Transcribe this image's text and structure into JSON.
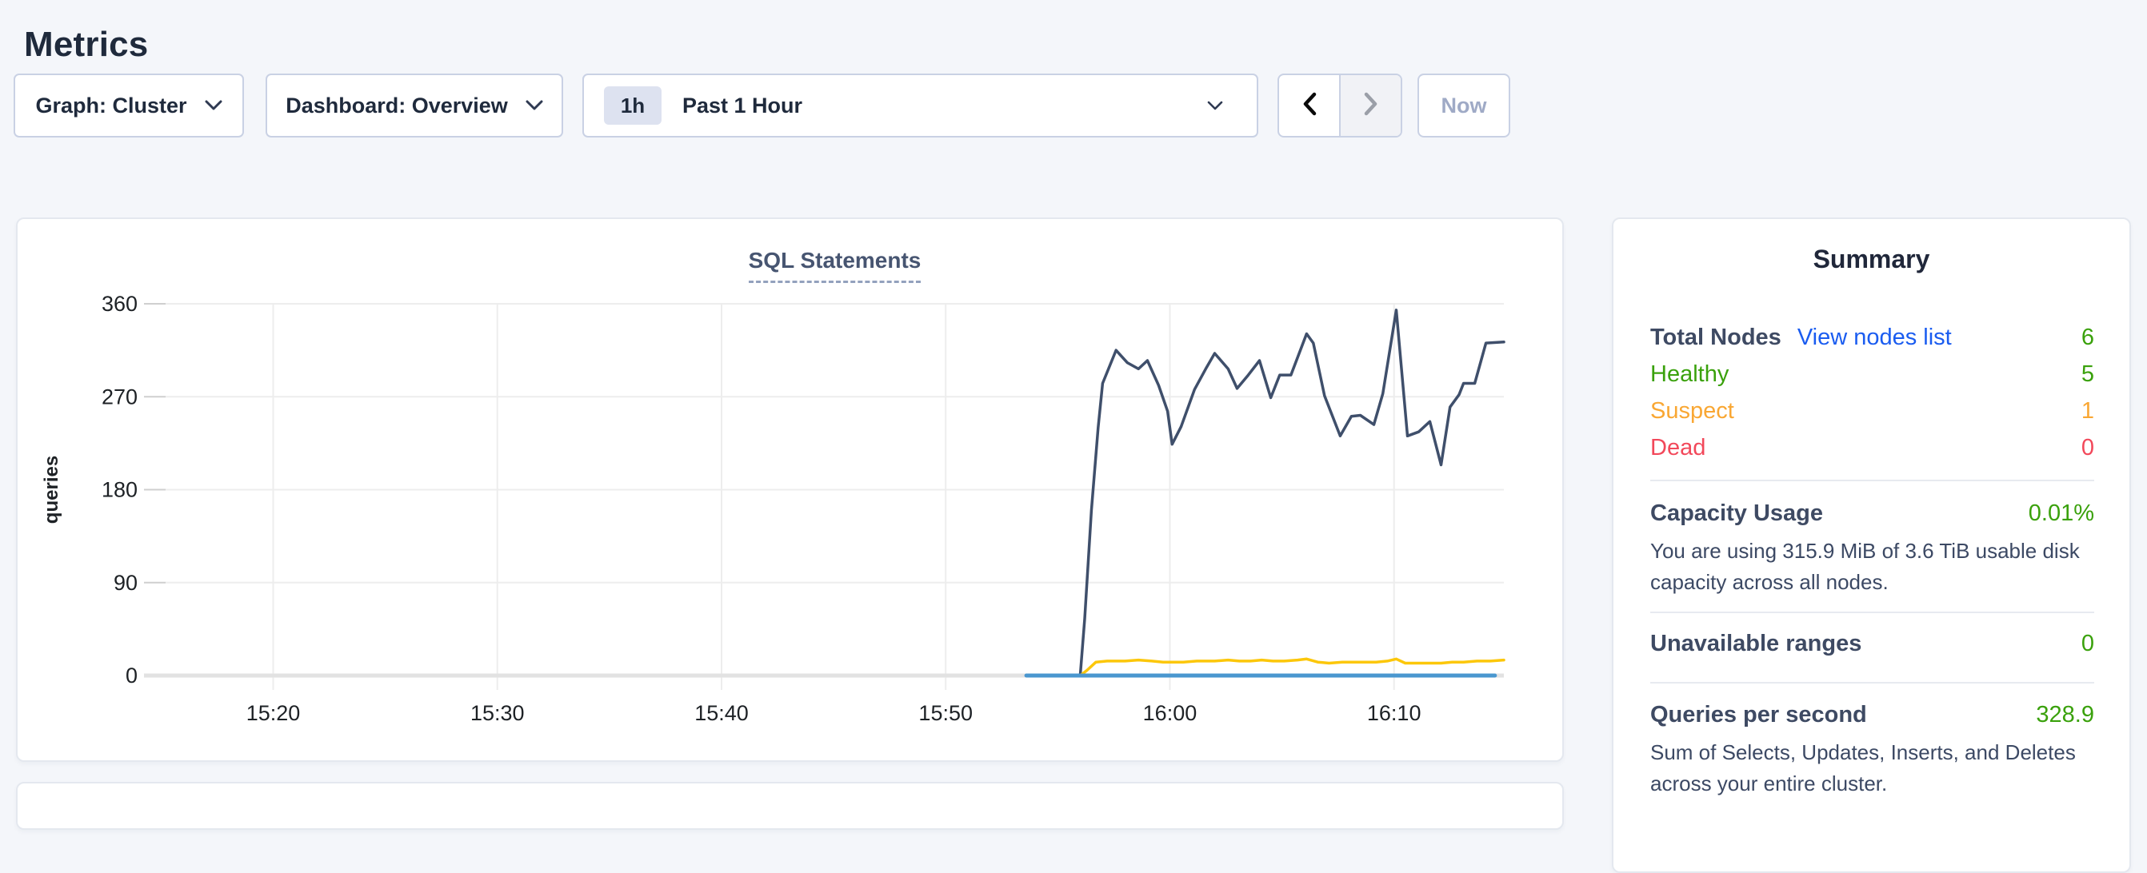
{
  "page": {
    "title": "Metrics"
  },
  "toolbar": {
    "graph_selector": "Graph: Cluster",
    "dashboard_selector": "Dashboard: Overview",
    "time_window_badge": "1h",
    "time_window_label": "Past 1 Hour",
    "now_button": "Now"
  },
  "chart_data": {
    "type": "line",
    "title": "SQL Statements",
    "ylabel": "queries",
    "ylim": [
      0,
      360
    ],
    "y_ticks": [
      0,
      90,
      180,
      270,
      360
    ],
    "x_ticks": [
      {
        "minutes": 20,
        "label": "15:20"
      },
      {
        "minutes": 30,
        "label": "15:30"
      },
      {
        "minutes": 40,
        "label": "15:40"
      },
      {
        "minutes": 50,
        "label": "15:50"
      },
      {
        "minutes": 60,
        "label": "16:00"
      },
      {
        "minutes": 70,
        "label": "16:10"
      }
    ],
    "x_domain_minutes_after_1500": [
      15.2,
      74.9
    ],
    "grid": true,
    "legend": "none",
    "series": [
      {
        "color": "#3f4f6b",
        "points": [
          [
            56.0,
            0
          ],
          [
            56.2,
            55
          ],
          [
            56.5,
            160
          ],
          [
            56.8,
            240
          ],
          [
            57.0,
            283
          ],
          [
            57.6,
            315
          ],
          [
            58.1,
            303
          ],
          [
            58.6,
            297
          ],
          [
            59.0,
            305
          ],
          [
            59.5,
            281
          ],
          [
            59.9,
            256
          ],
          [
            60.1,
            224
          ],
          [
            60.5,
            241
          ],
          [
            61.1,
            277
          ],
          [
            61.6,
            297
          ],
          [
            62.0,
            312
          ],
          [
            62.6,
            297
          ],
          [
            63.0,
            278
          ],
          [
            63.5,
            291
          ],
          [
            64.0,
            305
          ],
          [
            64.5,
            269
          ],
          [
            64.9,
            291
          ],
          [
            65.4,
            291
          ],
          [
            66.1,
            331
          ],
          [
            66.4,
            322
          ],
          [
            66.9,
            271
          ],
          [
            67.6,
            232
          ],
          [
            68.1,
            251
          ],
          [
            68.5,
            252
          ],
          [
            69.1,
            243
          ],
          [
            69.5,
            273
          ],
          [
            70.1,
            354
          ],
          [
            70.6,
            232
          ],
          [
            71.1,
            236
          ],
          [
            71.6,
            246
          ],
          [
            72.1,
            204
          ],
          [
            72.5,
            260
          ],
          [
            72.9,
            272
          ],
          [
            73.1,
            283
          ],
          [
            73.6,
            283
          ],
          [
            74.1,
            322
          ],
          [
            74.9,
            323
          ]
        ]
      },
      {
        "color": "#fcc70a",
        "points": [
          [
            56.0,
            0
          ],
          [
            56.3,
            5
          ],
          [
            56.7,
            13
          ],
          [
            57.2,
            14
          ],
          [
            58.0,
            14
          ],
          [
            58.6,
            15
          ],
          [
            59.2,
            14
          ],
          [
            59.7,
            13
          ],
          [
            60.1,
            13
          ],
          [
            60.6,
            13
          ],
          [
            61.2,
            14
          ],
          [
            62.0,
            14
          ],
          [
            62.6,
            15
          ],
          [
            63.1,
            14
          ],
          [
            63.6,
            14
          ],
          [
            64.1,
            15
          ],
          [
            64.6,
            14
          ],
          [
            65.1,
            14
          ],
          [
            65.7,
            15
          ],
          [
            66.1,
            16
          ],
          [
            66.6,
            13
          ],
          [
            67.1,
            12
          ],
          [
            67.7,
            13
          ],
          [
            68.2,
            13
          ],
          [
            68.7,
            13
          ],
          [
            69.2,
            13
          ],
          [
            69.7,
            14
          ],
          [
            70.1,
            16
          ],
          [
            70.5,
            12
          ],
          [
            71.1,
            12
          ],
          [
            71.6,
            12
          ],
          [
            72.1,
            12
          ],
          [
            72.6,
            13
          ],
          [
            73.1,
            13
          ],
          [
            73.7,
            14
          ],
          [
            74.3,
            14
          ],
          [
            74.9,
            15
          ]
        ]
      },
      {
        "color": "#4a97cf",
        "points": [
          [
            53.6,
            0
          ],
          [
            74.5,
            0
          ]
        ]
      }
    ]
  },
  "summary": {
    "title": "Summary",
    "accent_green": "#3aa10c",
    "nodes": {
      "label": "Total Nodes",
      "link": "View nodes list",
      "link_color": "#1a5cf0",
      "value": "6",
      "statuses": [
        {
          "label": "Healthy",
          "value": "5",
          "color": "#3aa10c"
        },
        {
          "label": "Suspect",
          "value": "1",
          "color": "#f9a733"
        },
        {
          "label": "Dead",
          "value": "0",
          "color": "#f2485a"
        }
      ]
    },
    "capacity": {
      "label": "Capacity Usage",
      "value": "0.01%",
      "description": "You are using 315.9 MiB of 3.6 TiB usable disk capacity across all nodes."
    },
    "unavailable": {
      "label": "Unavailable ranges",
      "value": "0"
    },
    "qps": {
      "label": "Queries per second",
      "value": "328.9",
      "description": "Sum of Selects, Updates, Inserts, and Deletes across your entire cluster."
    }
  }
}
